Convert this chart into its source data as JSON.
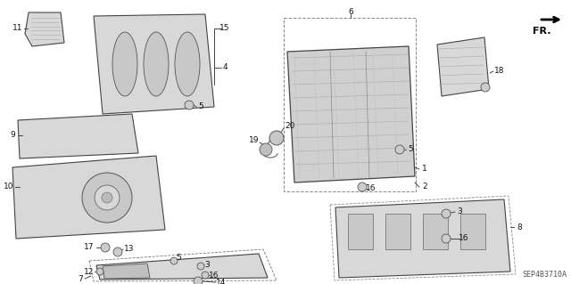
{
  "background_color": "#ffffff",
  "diagram_code": "SEP4B3710A",
  "fr_label": "FR.",
  "figsize": [
    6.4,
    3.19
  ],
  "dpi": 100,
  "label_fontsize": 6.5,
  "line_color": "#333333",
  "part_fill": "#e0e0e0",
  "part_edge": "#444444"
}
